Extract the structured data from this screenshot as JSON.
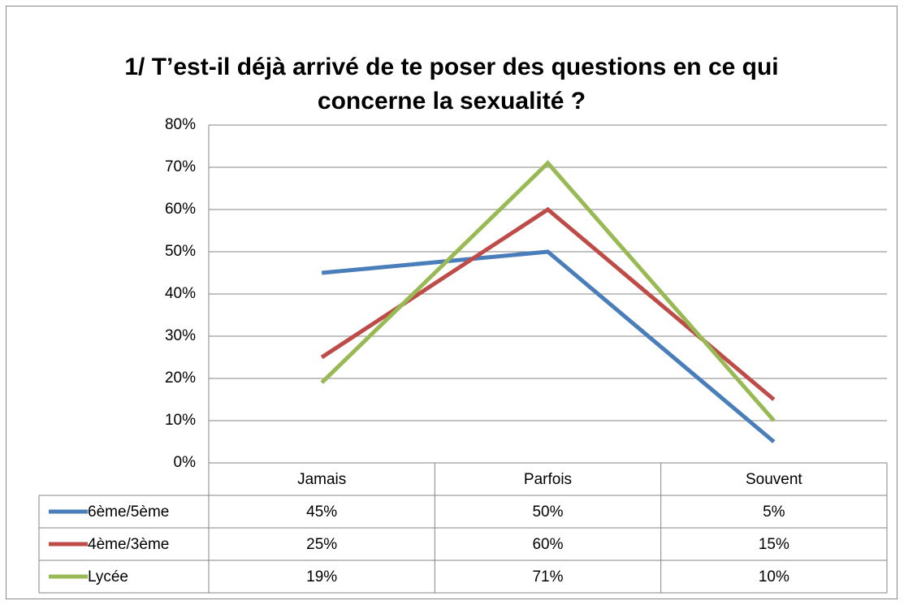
{
  "chart_data": {
    "type": "line",
    "title": "1/ T’est-il déjà arrivé de te poser des questions en ce qui concerne la sexualité ?",
    "categories": [
      "Jamais",
      "Parfois",
      "Souvent"
    ],
    "series": [
      {
        "name": "6ème/5ème",
        "color": "#4a7ebb",
        "values": [
          45,
          50,
          5
        ],
        "value_labels": [
          "45%",
          "50%",
          "5%"
        ]
      },
      {
        "name": "4ème/3ème",
        "color": "#be4b48",
        "values": [
          25,
          60,
          15
        ],
        "value_labels": [
          "25%",
          "60%",
          "15%"
        ]
      },
      {
        "name": "Lycée",
        "color": "#98b954",
        "values": [
          19,
          71,
          10
        ],
        "value_labels": [
          "19%",
          "71%",
          "10%"
        ]
      }
    ],
    "ylim": [
      0,
      80
    ],
    "yticks": [
      {
        "value": 0,
        "label": "0%"
      },
      {
        "value": 10,
        "label": "10%"
      },
      {
        "value": 20,
        "label": "20%"
      },
      {
        "value": 30,
        "label": "30%"
      },
      {
        "value": 40,
        "label": "40%"
      },
      {
        "value": 50,
        "label": "50%"
      },
      {
        "value": 60,
        "label": "60%"
      },
      {
        "value": 70,
        "label": "70%"
      },
      {
        "value": 80,
        "label": "80%"
      }
    ],
    "grid": true
  }
}
